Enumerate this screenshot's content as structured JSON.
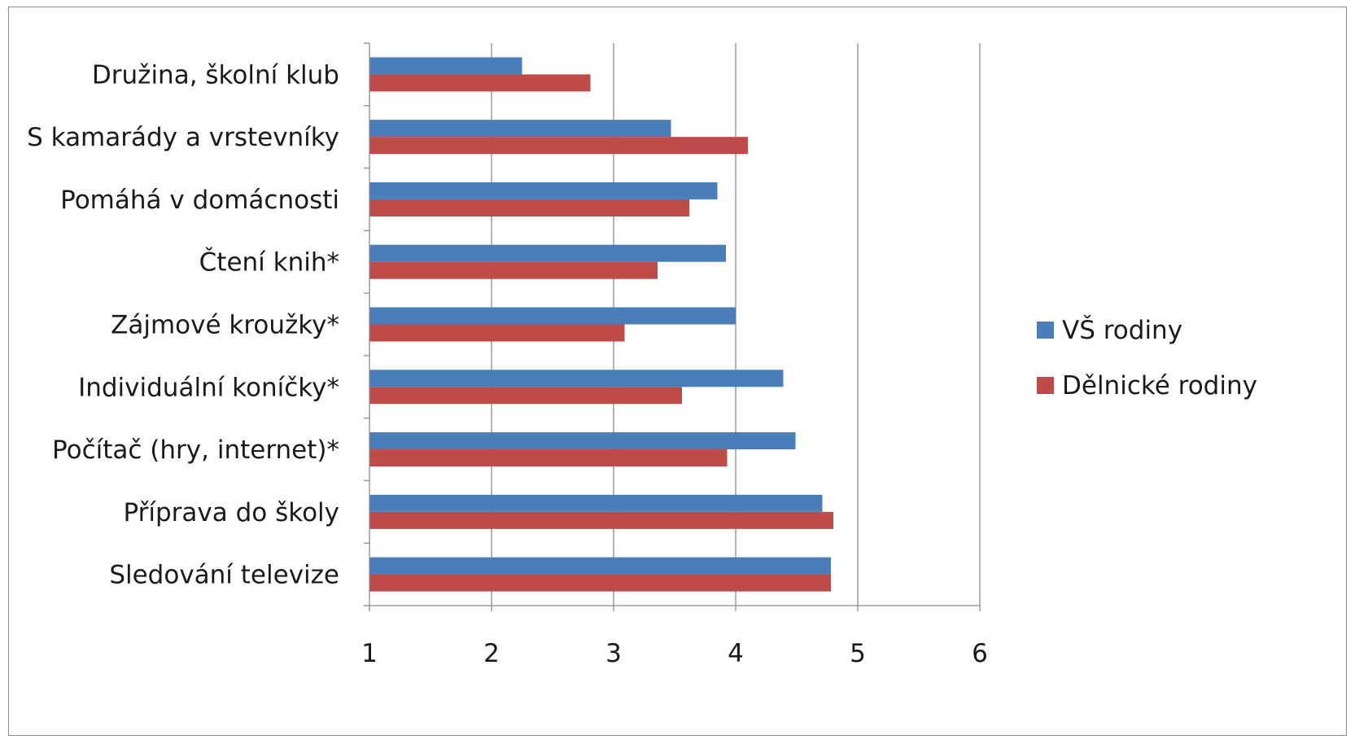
{
  "chart_data": {
    "type": "bar",
    "orientation": "horizontal",
    "categories": [
      "Družina, školní klub",
      "S kamarády a vrstevníky",
      "Pomáhá v domácnosti",
      "Čtení knih*",
      "Zájmové kroužky*",
      "Individuální koníčky*",
      "Počítač (hry, internet)*",
      "Příprava do školy",
      "Sledování televize"
    ],
    "series": [
      {
        "name": "VŠ rodiny",
        "color": "#4a7ebb",
        "values": [
          2.25,
          3.47,
          3.85,
          3.92,
          4.0,
          4.39,
          4.49,
          4.71,
          4.78
        ]
      },
      {
        "name": "Dělnické rodiny",
        "color": "#be4b48",
        "values": [
          2.81,
          4.1,
          3.62,
          3.36,
          3.09,
          3.56,
          3.93,
          4.8,
          4.78
        ]
      }
    ],
    "xlim": [
      1,
      6
    ],
    "xticks": [
      "1",
      "2",
      "3",
      "4",
      "5",
      "6"
    ],
    "grid": "vertical",
    "legend_position": "right",
    "title": "",
    "xlabel": "",
    "ylabel": ""
  }
}
